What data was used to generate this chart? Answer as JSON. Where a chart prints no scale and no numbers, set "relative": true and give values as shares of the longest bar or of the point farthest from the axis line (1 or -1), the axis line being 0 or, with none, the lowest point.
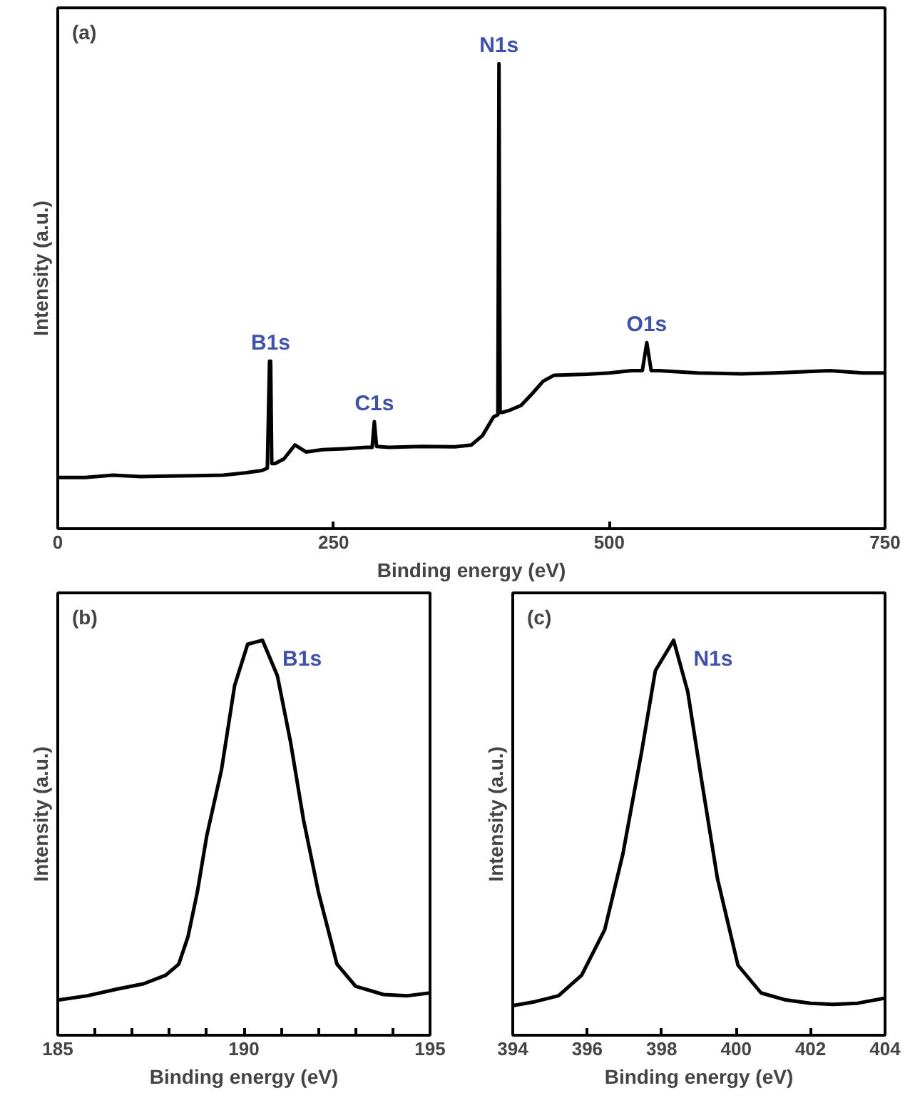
{
  "chart_data": [
    {
      "type": "line",
      "title": "(a)",
      "xlabel": "Binding energy (eV)",
      "ylabel": "Intensity (a.u.)",
      "relative": true,
      "color": "#000000",
      "tick_labels": "x",
      "xlim": [
        0,
        750
      ],
      "xticks": [
        0,
        250,
        500,
        750
      ],
      "x": [
        0,
        25,
        50,
        75,
        100,
        125,
        150,
        170,
        185,
        190,
        192,
        193,
        194,
        197,
        205,
        215,
        225,
        240,
        260,
        280,
        285,
        287,
        289,
        300,
        330,
        360,
        375,
        380,
        385,
        390,
        395,
        399,
        400,
        401,
        403,
        410,
        420,
        430,
        440,
        450,
        480,
        500,
        520,
        530,
        534,
        538,
        545,
        580,
        620,
        650,
        700,
        730,
        750
      ],
      "values": [
        0.11,
        0.11,
        0.115,
        0.112,
        0.113,
        0.114,
        0.115,
        0.12,
        0.125,
        0.13,
        0.36,
        0.36,
        0.14,
        0.14,
        0.15,
        0.18,
        0.165,
        0.17,
        0.172,
        0.175,
        0.175,
        0.23,
        0.177,
        0.175,
        0.177,
        0.176,
        0.18,
        0.19,
        0.2,
        0.22,
        0.24,
        0.245,
        1.0,
        0.25,
        0.25,
        0.255,
        0.265,
        0.29,
        0.317,
        0.33,
        0.332,
        0.335,
        0.34,
        0.34,
        0.4,
        0.34,
        0.34,
        0.335,
        0.333,
        0.335,
        0.34,
        0.335,
        0.335
      ],
      "annotations": [
        {
          "text": "B1s",
          "x": 193,
          "y": 0.36
        },
        {
          "text": "C1s",
          "x": 287,
          "y": 0.23
        },
        {
          "text": "N1s",
          "x": 400,
          "y": 1.0
        },
        {
          "text": "O1s",
          "x": 534,
          "y": 0.4
        }
      ]
    },
    {
      "type": "line",
      "title": "(b)",
      "xlabel": "Binding energy (eV)",
      "ylabel": "Intensity (a.u.)",
      "relative": true,
      "color": "#000000",
      "tick_labels": "x",
      "xlim": [
        185,
        195
      ],
      "xticks": [
        185,
        {
          "value": 186,
          "label": null
        },
        {
          "value": 187,
          "label": null
        },
        {
          "value": 188,
          "label": null
        },
        {
          "value": 189,
          "label": null
        },
        190,
        {
          "value": 191,
          "label": null
        },
        {
          "value": 192,
          "label": null
        },
        {
          "value": 193,
          "label": null
        },
        {
          "value": 194,
          "label": null
        },
        195
      ],
      "x": [
        185,
        185.8,
        186.6,
        187.3,
        187.9,
        188.25,
        188.5,
        188.75,
        189.0,
        189.4,
        189.75,
        190.1,
        190.5,
        190.9,
        191.25,
        191.6,
        192.0,
        192.5,
        193.0,
        193.75,
        194.4,
        195
      ],
      "values": [
        0.089,
        0.1,
        0.117,
        0.13,
        0.152,
        0.18,
        0.25,
        0.363,
        0.504,
        0.673,
        0.885,
        0.99,
        1.0,
        0.91,
        0.744,
        0.546,
        0.363,
        0.18,
        0.124,
        0.103,
        0.1,
        0.107
      ],
      "annotations": [
        {
          "text": "B1s",
          "x": 190.5,
          "y": 1.0
        }
      ]
    },
    {
      "type": "line",
      "title": "(c)",
      "xlabel": "Binding energy (eV)",
      "ylabel": "Intensity (a.u.)",
      "relative": true,
      "color": "#000000",
      "tick_labels": "x",
      "xlim": [
        394,
        404
      ],
      "xticks": [
        394,
        396,
        398,
        400,
        402,
        404
      ],
      "x": [
        394,
        394.6,
        395.23,
        395.85,
        396.47,
        396.96,
        397.46,
        397.83,
        398.32,
        398.7,
        399.06,
        399.5,
        400.05,
        400.67,
        401.3,
        402.0,
        402.6,
        403.26,
        404
      ],
      "values": [
        0.075,
        0.085,
        0.1,
        0.152,
        0.267,
        0.46,
        0.717,
        0.923,
        1.0,
        0.87,
        0.653,
        0.396,
        0.177,
        0.107,
        0.09,
        0.081,
        0.078,
        0.081,
        0.094
      ],
      "annotations": [
        {
          "text": "N1s",
          "x": 398.32,
          "y": 1.0
        }
      ]
    }
  ]
}
